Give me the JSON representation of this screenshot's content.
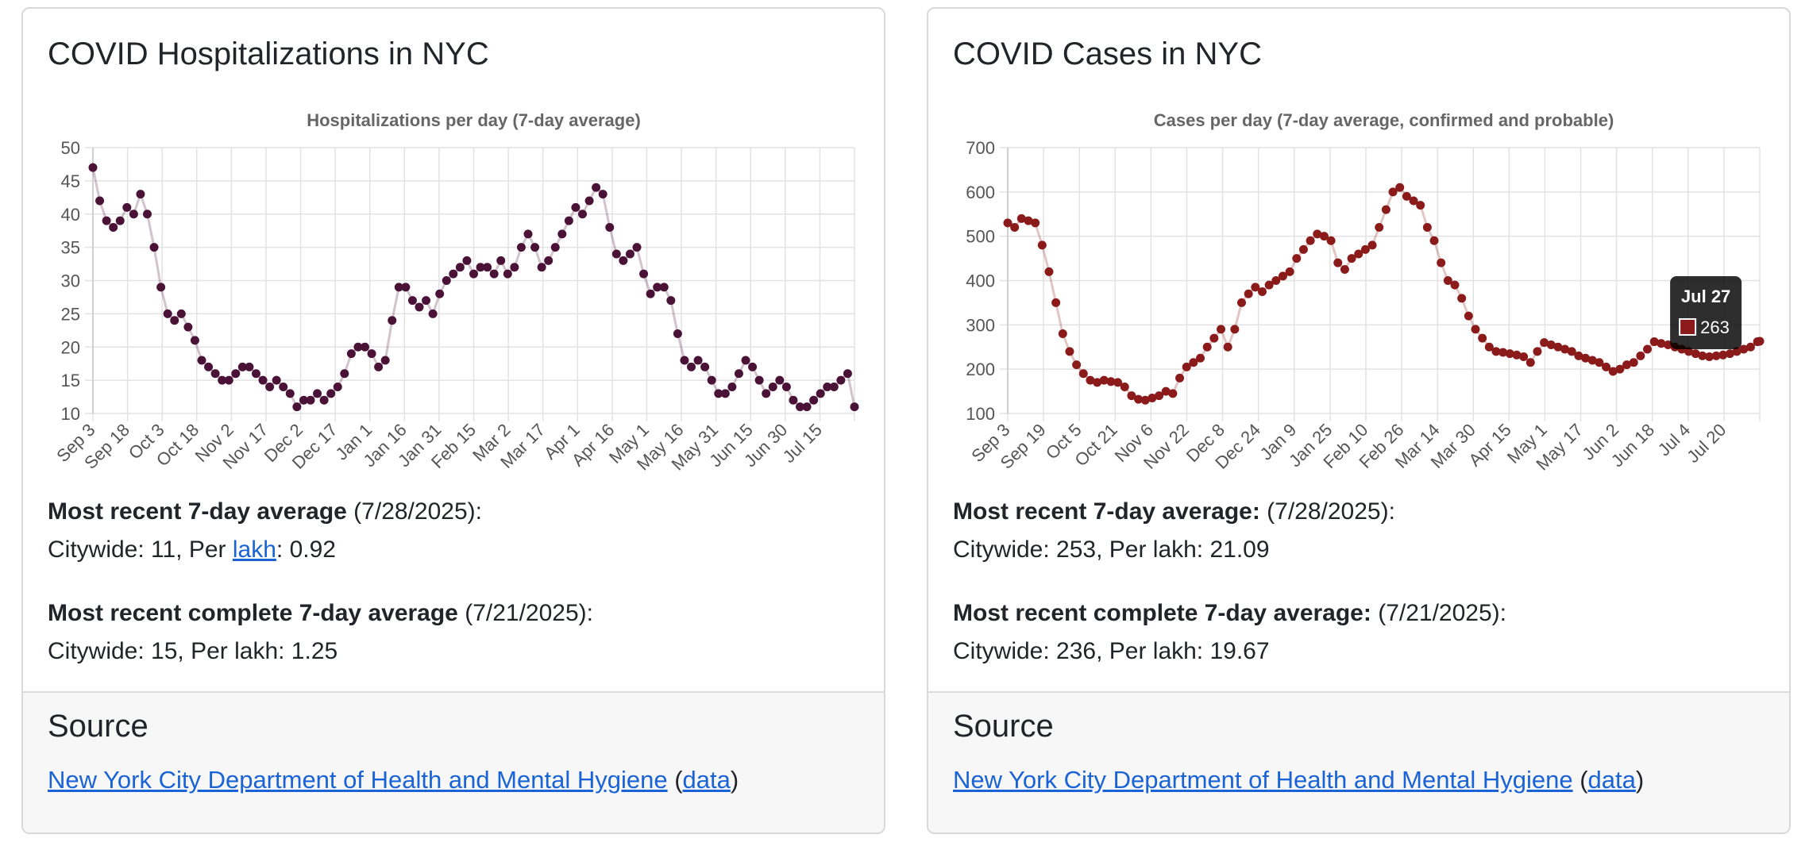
{
  "cards": [
    {
      "title": "COVID Hospitalizations in NYC",
      "recent_label": "Most recent 7-day average",
      "recent_label_colon": ":",
      "recent_date": " (7/28/2025):",
      "recent_line_a": "Citywide: 11, Per ",
      "recent_link": "lakh",
      "recent_line_b": ": 0.92",
      "complete_label": "Most recent complete 7-day average",
      "complete_date": " (7/21/2025):",
      "complete_line": "Citywide: 15, Per lakh: 1.25",
      "source_heading": "Source",
      "source_link": "New York City Department of Health and Mental Hygiene",
      "data_open": " (",
      "data_link": "data",
      "data_close": ")"
    },
    {
      "title": "COVID Cases in NYC",
      "recent_label": "Most recent 7-day average:",
      "recent_date": " (7/28/2025):",
      "recent_line": "Citywide: 253, Per lakh: 21.09",
      "complete_label": "Most recent complete 7-day average:",
      "complete_date": " (7/21/2025):",
      "complete_line": "Citywide: 236, Per lakh: 19.67",
      "source_heading": "Source",
      "source_link": "New York City Department of Health and Mental Hygiene",
      "data_open": " (",
      "data_link": "data",
      "data_close": ")"
    }
  ],
  "chart_data": [
    {
      "type": "scatter",
      "title": "Hospitalizations per day (7-day average)",
      "ylim": [
        10,
        50
      ],
      "y_ticks": [
        10,
        15,
        20,
        25,
        30,
        35,
        40,
        45,
        50
      ],
      "x_ticks": [
        "Sep 3",
        "Sep 18",
        "Oct 3",
        "Oct 18",
        "Nov 2",
        "Nov 17",
        "Dec 2",
        "Dec 17",
        "Jan 1",
        "Jan 16",
        "Jan 31",
        "Feb 15",
        "Mar 2",
        "Mar 17",
        "Apr 1",
        "Apr 16",
        "May 1",
        "May 16",
        "May 31",
        "Jun 15",
        "Jun 30",
        "Jul 15"
      ],
      "grid": true,
      "color": "#4a1236",
      "x": [
        0,
        3,
        6,
        9,
        12,
        15,
        18,
        21,
        24,
        27,
        30,
        33,
        36,
        39,
        42,
        45,
        48,
        51,
        54,
        57,
        60,
        63,
        66,
        69,
        72,
        75,
        78,
        81,
        84,
        87,
        90,
        93,
        96,
        99,
        102,
        105,
        108,
        111,
        114,
        117,
        120,
        123,
        126,
        129,
        132,
        135,
        138,
        141,
        144,
        147,
        150,
        153,
        156,
        159,
        162,
        165,
        168,
        171,
        174,
        177,
        180,
        183,
        186,
        189,
        192,
        195,
        198,
        201,
        204,
        207,
        210,
        213,
        216,
        219,
        222,
        225,
        228,
        231,
        234,
        237,
        240,
        243,
        246,
        249,
        252,
        255,
        258,
        261,
        264,
        267,
        270,
        273,
        276,
        279,
        282,
        285,
        288,
        291,
        294,
        297,
        300,
        303,
        306,
        309,
        312,
        315,
        318,
        321,
        324,
        327,
        330,
        333,
        336
      ],
      "y": [
        47,
        42,
        39,
        38,
        39,
        41,
        40,
        43,
        40,
        35,
        29,
        25,
        24,
        25,
        23,
        21,
        18,
        17,
        16,
        15,
        15,
        16,
        17,
        17,
        16,
        15,
        14,
        15,
        14,
        13,
        11,
        12,
        12,
        13,
        12,
        13,
        14,
        16,
        19,
        20,
        20,
        19,
        17,
        18,
        24,
        29,
        29,
        27,
        26,
        27,
        25,
        28,
        30,
        31,
        32,
        33,
        31,
        32,
        32,
        31,
        33,
        31,
        32,
        35,
        37,
        35,
        32,
        33,
        35,
        37,
        39,
        41,
        40,
        42,
        44,
        43,
        38,
        34,
        33,
        34,
        35,
        31,
        28,
        29,
        29,
        27,
        22,
        18,
        17,
        18,
        17,
        15,
        13,
        13,
        14,
        16,
        18,
        17,
        15,
        13,
        14,
        15,
        14,
        12,
        11,
        11,
        12,
        13,
        14,
        14,
        15,
        16,
        11
      ]
    },
    {
      "type": "scatter",
      "title": "Cases per day (7-day average, confirmed and probable)",
      "ylim": [
        100,
        700
      ],
      "y_ticks": [
        100,
        200,
        300,
        400,
        500,
        600,
        700
      ],
      "x_ticks": [
        "Sep 3",
        "Sep 19",
        "Oct 5",
        "Oct 21",
        "Nov 6",
        "Nov 22",
        "Dec 8",
        "Dec 24",
        "Jan 9",
        "Jan 25",
        "Feb 10",
        "Feb 26",
        "Mar 14",
        "Mar 30",
        "Apr 15",
        "May 1",
        "May 17",
        "Jun 2",
        "Jun 18",
        "Jul 4",
        "Jul 20"
      ],
      "grid": true,
      "color": "#8b1a1a",
      "x": [
        0,
        3,
        6,
        9,
        12,
        15,
        18,
        21,
        24,
        27,
        30,
        33,
        36,
        39,
        42,
        45,
        48,
        51,
        54,
        57,
        60,
        63,
        66,
        69,
        72,
        75,
        78,
        81,
        84,
        87,
        90,
        93,
        96,
        99,
        102,
        105,
        108,
        111,
        114,
        117,
        120,
        123,
        126,
        129,
        132,
        135,
        138,
        141,
        144,
        147,
        150,
        153,
        156,
        159,
        162,
        165,
        168,
        171,
        174,
        177,
        180,
        183,
        186,
        189,
        192,
        195,
        198,
        201,
        204,
        207,
        210,
        213,
        216,
        219,
        222,
        225,
        228,
        231,
        234,
        237,
        240,
        243,
        246,
        249,
        252,
        255,
        258,
        261,
        264,
        267,
        270,
        273,
        276,
        279,
        282,
        285,
        288,
        291,
        294,
        297,
        300,
        303,
        306,
        309,
        312,
        315,
        318,
        321,
        324,
        327,
        328
      ],
      "y": [
        530,
        520,
        540,
        535,
        530,
        480,
        420,
        350,
        280,
        240,
        210,
        190,
        175,
        170,
        175,
        172,
        170,
        160,
        140,
        132,
        130,
        135,
        140,
        150,
        145,
        180,
        205,
        215,
        225,
        250,
        270,
        290,
        250,
        290,
        350,
        370,
        385,
        375,
        390,
        400,
        410,
        420,
        450,
        470,
        490,
        505,
        500,
        490,
        440,
        425,
        450,
        460,
        470,
        480,
        520,
        560,
        600,
        610,
        590,
        580,
        570,
        520,
        490,
        440,
        400,
        390,
        360,
        320,
        290,
        270,
        250,
        240,
        238,
        235,
        232,
        228,
        215,
        240,
        260,
        255,
        250,
        245,
        240,
        230,
        225,
        220,
        215,
        205,
        195,
        200,
        210,
        215,
        230,
        245,
        262,
        258,
        255,
        250,
        245,
        240,
        235,
        230,
        228,
        230,
        232,
        235,
        240,
        245,
        250,
        262,
        263
      ],
      "tooltip": {
        "label": "Jul 27",
        "value": "263"
      }
    }
  ]
}
